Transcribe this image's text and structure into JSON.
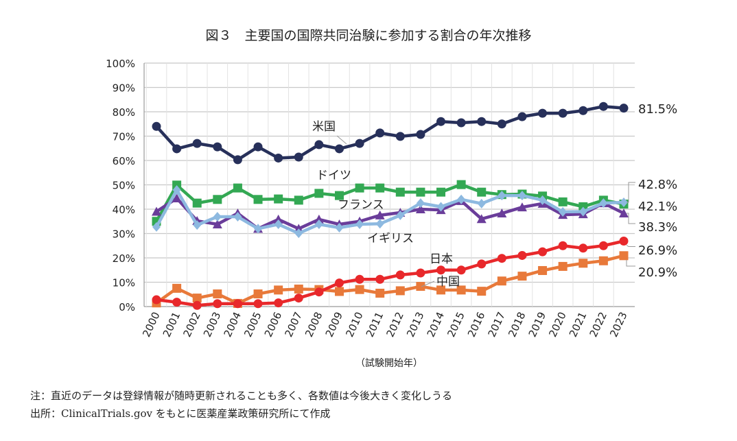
{
  "chart_data": {
    "type": "line",
    "title": "図３　主要国の国際共同治験に参加する割合の年次推移",
    "xlabel": "（試験開始年）",
    "ylabel": "",
    "ylim": [
      0,
      100
    ],
    "yticks": [
      "0%",
      "10%",
      "20%",
      "30%",
      "40%",
      "50%",
      "60%",
      "70%",
      "80%",
      "90%",
      "100%"
    ],
    "grid": true,
    "categories": [
      "2000",
      "2001",
      "2002",
      "2003",
      "2004",
      "2005",
      "2006",
      "2007",
      "2008",
      "2009",
      "2010",
      "2011",
      "2012",
      "2013",
      "2014",
      "2015",
      "2016",
      "2017",
      "2018",
      "2019",
      "2020",
      "2021",
      "2022",
      "2023"
    ],
    "series": [
      {
        "name": "米国",
        "color": "#27305a",
        "marker": "circle",
        "end_label": "81.5%",
        "values": [
          74,
          64.8,
          67,
          65.6,
          60.3,
          65.6,
          61,
          61.4,
          66.5,
          64.8,
          67,
          71.3,
          69.9,
          70.7,
          76,
          75.5,
          76,
          75,
          78,
          79.4,
          79.4,
          80.5,
          82.2,
          81.5
        ]
      },
      {
        "name": "ドイツ",
        "color": "#33a853",
        "marker": "square",
        "end_label": "42.1%",
        "values": [
          35,
          49.9,
          42.5,
          44,
          48.7,
          44,
          44.2,
          43.7,
          46.5,
          45.6,
          48.7,
          48.7,
          47,
          47,
          47,
          50.1,
          47,
          46,
          46.2,
          45.4,
          43,
          41,
          43.7,
          42.1
        ]
      },
      {
        "name": "イギリス",
        "color": "#6a3d9a",
        "marker": "triangle",
        "end_label": "38.3%",
        "values": [
          39,
          44.5,
          35.2,
          33.8,
          38.3,
          32,
          35.8,
          32,
          35.8,
          33.8,
          35,
          37.5,
          38.6,
          40,
          39.7,
          43.4,
          36,
          38.3,
          40.8,
          42.3,
          37.7,
          38,
          42.5,
          38.3
        ]
      },
      {
        "name": "フランス",
        "color": "#8db9e0",
        "marker": "diamond",
        "end_label": "42.8%",
        "values": [
          32.7,
          47.9,
          33.5,
          36.9,
          36.9,
          32,
          33.8,
          30.1,
          33.8,
          32.4,
          33.8,
          34,
          37.5,
          42.5,
          41,
          44,
          42.3,
          45.6,
          45.6,
          43.7,
          38.9,
          39,
          42.5,
          42.8
        ]
      },
      {
        "name": "日本",
        "color": "#e8282b",
        "marker": "circle",
        "end_label": "26.9%",
        "values": [
          2.8,
          1.8,
          0.5,
          1.2,
          1.2,
          1.2,
          1.5,
          3.5,
          6,
          9.7,
          11.2,
          11.2,
          13,
          13.8,
          15,
          15,
          17.5,
          19.8,
          21,
          22.5,
          25,
          24,
          25,
          26.9
        ]
      },
      {
        "name": "中国",
        "color": "#e8793a",
        "marker": "square",
        "end_label": "20.9%",
        "values": [
          1.5,
          7.5,
          3.5,
          5.2,
          1.3,
          5.2,
          6.8,
          7.2,
          7,
          6.2,
          7,
          5.5,
          6.5,
          8.3,
          6.8,
          6.8,
          6.3,
          10.5,
          12.5,
          14.8,
          16.5,
          17.8,
          18.8,
          20.9
        ]
      }
    ]
  },
  "notes": [
    "注：直近のデータは登録情報が随時更新されることも多く、各数値は今後大きく変化しうる",
    "出所：ClinicalTrials.gov をもとに医薬産業政策研究所にて作成"
  ]
}
